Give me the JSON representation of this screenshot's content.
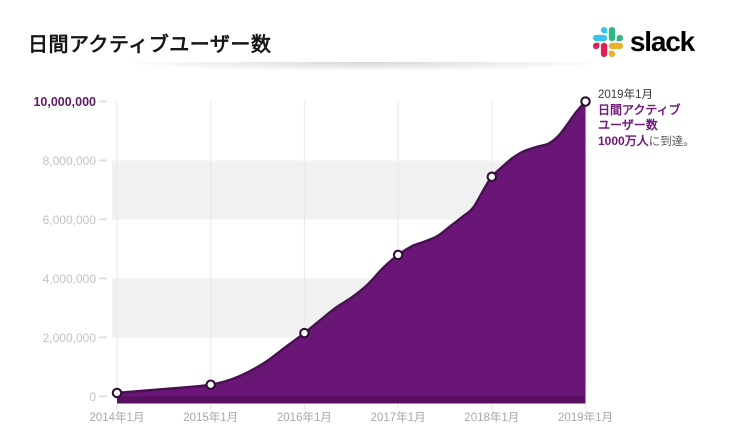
{
  "header": {
    "title": "日間アクティブユーザー数"
  },
  "brand": {
    "wordmark": "slack",
    "icon_colors": {
      "blue": "#36C5F0",
      "green": "#2EB67D",
      "yellow": "#ECB22E",
      "red": "#E01E5A"
    }
  },
  "annotation": {
    "line1": "2019年1月",
    "line2": "日間アクティブ",
    "line3": "ユーザー数",
    "line4_bold": "1000万人",
    "line4_rest": "に到達。"
  },
  "chart_data": {
    "type": "area",
    "title": "日間アクティブユーザー数",
    "xlabel": "",
    "ylabel": "",
    "xlim": [
      2014,
      2019
    ],
    "ylim": [
      0,
      10000000
    ],
    "grid": "vertical-lines-and-horizontal-bands",
    "legend": "none",
    "x_tick_labels": [
      "2014年1月",
      "2015年1月",
      "2016年1月",
      "2017年1月",
      "2018年1月",
      "2019年1月"
    ],
    "y_ticks": [
      0,
      2000000,
      4000000,
      6000000,
      8000000,
      10000000
    ],
    "y_tick_labels": [
      "0",
      "2,000,000",
      "4,000,000",
      "6,000,000",
      "8,000,000",
      "10,000,000"
    ],
    "markers": [
      {
        "x": 2014,
        "y": 120000
      },
      {
        "x": 2015,
        "y": 400000
      },
      {
        "x": 2016,
        "y": 2150000
      },
      {
        "x": 2017,
        "y": 4800000
      },
      {
        "x": 2018,
        "y": 7450000
      },
      {
        "x": 2019,
        "y": 10000000
      }
    ],
    "curve": [
      [
        2014.0,
        120000
      ],
      [
        2014.25,
        190000
      ],
      [
        2014.5,
        250000
      ],
      [
        2014.76,
        320000
      ],
      [
        2015.0,
        400000
      ],
      [
        2015.2,
        560000
      ],
      [
        2015.4,
        830000
      ],
      [
        2015.6,
        1200000
      ],
      [
        2015.8,
        1680000
      ],
      [
        2016.0,
        2150000
      ],
      [
        2016.17,
        2590000
      ],
      [
        2016.34,
        3020000
      ],
      [
        2016.51,
        3370000
      ],
      [
        2016.68,
        3810000
      ],
      [
        2016.84,
        4360000
      ],
      [
        2017.0,
        4800000
      ],
      [
        2017.15,
        5100000
      ],
      [
        2017.28,
        5250000
      ],
      [
        2017.42,
        5440000
      ],
      [
        2017.56,
        5780000
      ],
      [
        2017.69,
        6100000
      ],
      [
        2017.8,
        6400000
      ],
      [
        2017.92,
        7050000
      ],
      [
        2018.0,
        7450000
      ],
      [
        2018.12,
        7810000
      ],
      [
        2018.22,
        8080000
      ],
      [
        2018.34,
        8310000
      ],
      [
        2018.48,
        8460000
      ],
      [
        2018.61,
        8580000
      ],
      [
        2018.71,
        8830000
      ],
      [
        2018.81,
        9240000
      ],
      [
        2018.9,
        9640000
      ],
      [
        2019.0,
        10000000
      ]
    ],
    "colors": {
      "area_fill": "#6a1676",
      "area_stroke": "#471051",
      "baseline_strip": "#5a1060",
      "band_gray": "#f1f1f1",
      "gridline": "#e9e9e9",
      "tick": "#dcdcdc",
      "marker_fill": "#ffffff",
      "marker_ring": "#2e0f33",
      "y_max_label": "#5d1a66"
    }
  }
}
